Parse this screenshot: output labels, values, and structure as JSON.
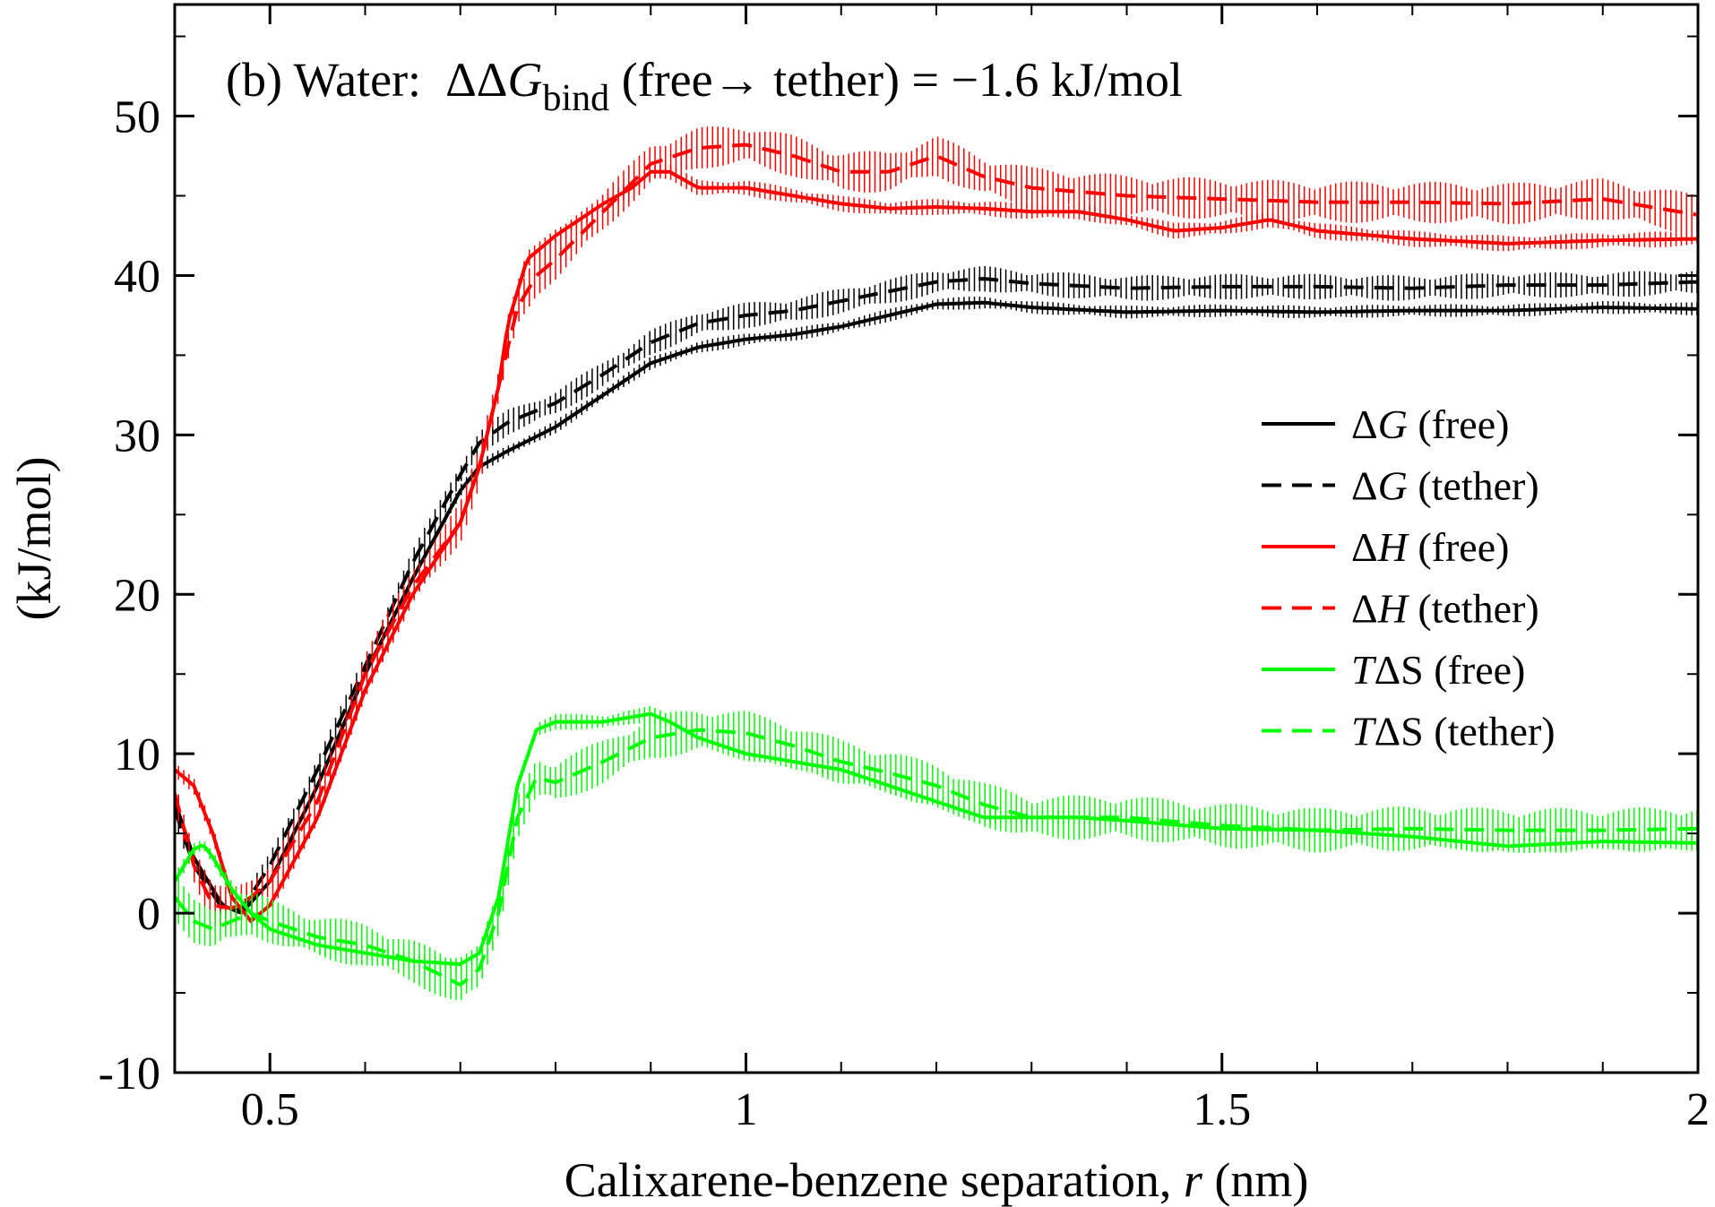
{
  "chart_data": {
    "type": "line",
    "title": {
      "prefix": "(b) Water:  ",
      "delta": "ΔΔ",
      "symbol": "G",
      "subscript": "bind",
      "middle": " (free",
      "arrow": "→",
      "after_arrow": " tether) = −1.6 kJ/mol"
    },
    "xlabel": {
      "prefix": "Calixarene-benzene separation, ",
      "italic": "r",
      "suffix": " (nm)"
    },
    "ylabel": "(kJ/mol)",
    "xlim": [
      0.4,
      2.0
    ],
    "ylim": [
      -10,
      57
    ],
    "xticks": [
      {
        "v": 0.5,
        "label": "0.5"
      },
      {
        "v": 1.0,
        "label": "1"
      },
      {
        "v": 1.5,
        "label": "1.5"
      },
      {
        "v": 2.0,
        "label": "2"
      }
    ],
    "yticks": [
      {
        "v": -10,
        "label": "-10"
      },
      {
        "v": 0,
        "label": "0"
      },
      {
        "v": 10,
        "label": "10"
      },
      {
        "v": 20,
        "label": "20"
      },
      {
        "v": 30,
        "label": "30"
      },
      {
        "v": 40,
        "label": "40"
      },
      {
        "v": 50,
        "label": "50"
      }
    ],
    "legend_position": "right",
    "series": [
      {
        "name": "ΔG (free)",
        "pre": "Δ",
        "italic": "G",
        "post": " (free)",
        "color": "#000000",
        "dash": false,
        "err": 0.4,
        "x": [
          0.4,
          0.42,
          0.45,
          0.47,
          0.5,
          0.55,
          0.6,
          0.65,
          0.7,
          0.72,
          0.75,
          0.8,
          0.85,
          0.9,
          0.95,
          1.0,
          1.05,
          1.1,
          1.15,
          1.2,
          1.25,
          1.3,
          1.4,
          1.5,
          1.6,
          1.7,
          1.8,
          1.9,
          2.0
        ],
        "y": [
          7,
          3.5,
          0.5,
          0,
          2,
          8,
          15,
          21,
          26.5,
          28,
          29,
          30.5,
          32.5,
          34.5,
          35.5,
          36,
          36.3,
          36.8,
          37.5,
          38.2,
          38.3,
          38,
          37.7,
          37.8,
          37.7,
          37.8,
          37.8,
          38,
          37.9
        ]
      },
      {
        "name": "ΔG (tether)",
        "pre": "Δ",
        "italic": "G",
        "post": " (tether)",
        "color": "#000000",
        "dash": true,
        "err": 0.8,
        "x": [
          0.4,
          0.42,
          0.45,
          0.47,
          0.5,
          0.55,
          0.6,
          0.65,
          0.7,
          0.72,
          0.75,
          0.8,
          0.85,
          0.9,
          0.95,
          1.0,
          1.05,
          1.1,
          1.15,
          1.2,
          1.25,
          1.3,
          1.4,
          1.5,
          1.6,
          1.7,
          1.8,
          1.9,
          2.0
        ],
        "y": [
          6.5,
          3,
          0.3,
          0.2,
          3,
          9,
          15.5,
          22,
          27.5,
          29.5,
          30.8,
          32,
          33.8,
          35.8,
          37,
          37.5,
          37.8,
          38.4,
          39,
          39.6,
          39.8,
          39.5,
          39.2,
          39.3,
          39.3,
          39.2,
          39.4,
          39.4,
          39.6
        ]
      },
      {
        "name": "ΔH (free)",
        "pre": "Δ",
        "italic": "H",
        "post": " (free)",
        "color": "#ff0000",
        "dash": false,
        "err": 0.5,
        "x": [
          0.4,
          0.42,
          0.44,
          0.46,
          0.48,
          0.5,
          0.55,
          0.6,
          0.65,
          0.7,
          0.72,
          0.74,
          0.75,
          0.77,
          0.8,
          0.85,
          0.88,
          0.9,
          0.92,
          0.95,
          1.0,
          1.05,
          1.1,
          1.15,
          1.2,
          1.25,
          1.3,
          1.35,
          1.4,
          1.45,
          1.5,
          1.55,
          1.6,
          1.7,
          1.8,
          1.9,
          2.0
        ],
        "y": [
          9,
          8,
          5,
          1,
          -0.5,
          0.5,
          6,
          14,
          20,
          24.5,
          28,
          33,
          37,
          41,
          42.5,
          44.5,
          45.5,
          46.5,
          46.5,
          45.5,
          45.5,
          45,
          44.5,
          44.2,
          44.3,
          44.2,
          44,
          44,
          43.5,
          42.8,
          43,
          43.5,
          42.8,
          42.3,
          42,
          42.2,
          42.3
        ]
      },
      {
        "name": "ΔH (tether)",
        "pre": "Δ",
        "italic": "H",
        "post": " (tether)",
        "color": "#ff0000",
        "dash": true,
        "err": 1.3,
        "x": [
          0.4,
          0.42,
          0.44,
          0.46,
          0.48,
          0.5,
          0.55,
          0.6,
          0.65,
          0.7,
          0.72,
          0.74,
          0.76,
          0.78,
          0.8,
          0.85,
          0.9,
          0.95,
          1.0,
          1.05,
          1.1,
          1.15,
          1.2,
          1.25,
          1.3,
          1.4,
          1.5,
          1.6,
          1.7,
          1.8,
          1.9,
          2.0
        ],
        "y": [
          7.5,
          3,
          0.5,
          0.3,
          1,
          2,
          7,
          15,
          20.5,
          24.5,
          28,
          33,
          38,
          40,
          41,
          44,
          47,
          48,
          48.2,
          47.5,
          46.5,
          46.5,
          47.5,
          46.2,
          45.5,
          45,
          44.8,
          44.6,
          44.6,
          44.5,
          44.8,
          43.8
        ]
      },
      {
        "name": "TΔS (free)",
        "pre": "",
        "italic": "T",
        "post": "ΔS (free)",
        "color": "#00ff00",
        "dash": false,
        "err": 0.5,
        "x": [
          0.4,
          0.42,
          0.43,
          0.44,
          0.46,
          0.48,
          0.5,
          0.55,
          0.6,
          0.65,
          0.7,
          0.72,
          0.74,
          0.76,
          0.78,
          0.8,
          0.85,
          0.9,
          0.92,
          0.95,
          1.0,
          1.05,
          1.1,
          1.15,
          1.2,
          1.25,
          1.3,
          1.35,
          1.4,
          1.5,
          1.6,
          1.7,
          1.8,
          1.9,
          2.0
        ],
        "y": [
          2,
          4,
          4.3,
          3.5,
          1.5,
          0,
          -1,
          -2,
          -2.5,
          -3,
          -3.2,
          -2.5,
          1,
          8,
          11.5,
          12,
          12,
          12.5,
          12,
          11,
          10,
          9.5,
          9,
          8,
          7,
          6,
          6,
          6,
          5.8,
          5.3,
          5.2,
          4.8,
          4.2,
          4.5,
          4.4
        ]
      },
      {
        "name": "TΔS (tether)",
        "pre": "",
        "italic": "T",
        "post": "ΔS (tether)",
        "color": "#00ff00",
        "dash": true,
        "err": 1.4,
        "x": [
          0.4,
          0.42,
          0.44,
          0.46,
          0.48,
          0.5,
          0.55,
          0.6,
          0.65,
          0.7,
          0.72,
          0.74,
          0.76,
          0.78,
          0.8,
          0.85,
          0.9,
          0.95,
          1.0,
          1.05,
          1.1,
          1.15,
          1.2,
          1.25,
          1.3,
          1.4,
          1.5,
          1.6,
          1.7,
          1.8,
          1.9,
          2.0
        ],
        "y": [
          1,
          -0.5,
          -1,
          -0.5,
          0,
          -0.5,
          -1.5,
          -2,
          -3,
          -4.5,
          -3.5,
          0,
          6,
          8.5,
          8.2,
          9.5,
          11,
          11.5,
          11.3,
          10.5,
          9.5,
          8.8,
          8,
          6.8,
          6,
          6,
          5.5,
          5.2,
          5.3,
          5.2,
          5.2,
          5.3
        ]
      }
    ]
  }
}
